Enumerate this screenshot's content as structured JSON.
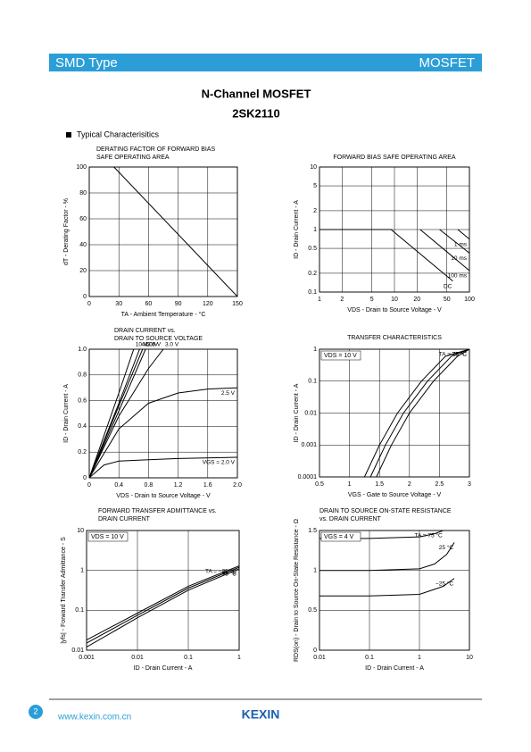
{
  "header": {
    "left": "SMD Type",
    "right": "MOSFET"
  },
  "title": "N-Channel MOSFET",
  "part": "2SK2110",
  "section": "Typical  Characterisitics",
  "charts": [
    {
      "type": "line",
      "title": [
        "DERATING FACTOR OF FORWARD BIAS",
        "SAFE OPERATING AREA"
      ],
      "xlabel": "TA - Ambient Temperature - °C",
      "ylabel": "dT - Derating Factor - %",
      "xlim": [
        0,
        150
      ],
      "xticks": [
        0,
        30,
        60,
        90,
        120,
        150
      ],
      "ylim": [
        0,
        100
      ],
      "yticks": [
        0,
        20,
        40,
        60,
        80,
        100
      ],
      "xlog": false,
      "ylog": false,
      "series": [
        {
          "x": [
            0,
            25,
            150
          ],
          "values": [
            100,
            100,
            0
          ]
        }
      ]
    },
    {
      "type": "line",
      "title": [
        "FORWARD BIAS SAFE OPERATING AREA"
      ],
      "xlabel": "VDS - Drain to Source Voltage - V",
      "ylabel": "ID - Drain Current - A",
      "xlim": [
        1,
        100
      ],
      "xticks": [
        1,
        2,
        5,
        10,
        20,
        50,
        100
      ],
      "ylim": [
        0.1,
        10
      ],
      "yticks": [
        0.1,
        0.2,
        0.5,
        1,
        2,
        5,
        10
      ],
      "xlog": true,
      "ylog": true,
      "series": [
        {
          "name": "DC",
          "x": [
            1,
            9,
            60
          ],
          "values": [
            1,
            1,
            0.15
          ]
        },
        {
          "name": "100 ms",
          "x": [
            22,
            100
          ],
          "values": [
            1,
            0.22
          ]
        },
        {
          "name": "10 ms",
          "x": [
            40,
            100
          ],
          "values": [
            1,
            0.42
          ]
        },
        {
          "name": "1 ms",
          "x": [
            70,
            100
          ],
          "values": [
            1,
            0.7
          ]
        }
      ]
    },
    {
      "type": "line",
      "title": [
        "DRAIN CURRENT vs.",
        "DRAIN TO SOURCE VOLTAGE"
      ],
      "xlabel": "VDS - Drain to Source Voltage - V",
      "ylabel": "ID - Drain Current - A",
      "xlim": [
        0,
        2
      ],
      "xticks": [
        0,
        0.4,
        0.8,
        1.2,
        1.6,
        {
          "value": 2,
          "label": "2.0"
        }
      ],
      "ylim": [
        0,
        1
      ],
      "yticks": [
        0,
        0.2,
        0.4,
        0.6,
        0.8,
        {
          "value": 1,
          "label": "1.0"
        }
      ],
      "xlog": false,
      "ylog": false,
      "series": [
        {
          "name": "VGS = 2.0 V",
          "x": [
            0,
            0.2,
            0.4,
            0.8,
            1.2,
            2
          ],
          "values": [
            0,
            0.1,
            0.13,
            0.14,
            0.15,
            0.16
          ]
        },
        {
          "name": "2.5 V",
          "x": [
            0,
            0.4,
            0.8,
            1.2,
            1.6,
            2
          ],
          "values": [
            0,
            0.38,
            0.58,
            0.66,
            0.69,
            0.7
          ]
        },
        {
          "name": "3.0 V",
          "x": [
            0,
            0.4,
            0.8,
            1.0
          ],
          "values": [
            0,
            0.48,
            0.85,
            1
          ]
        },
        {
          "name": "3.5 V",
          "x": [
            0,
            0.4,
            0.76
          ],
          "values": [
            0,
            0.52,
            1
          ]
        },
        {
          "name": "4.0 V",
          "x": [
            0,
            0.4,
            0.72
          ],
          "values": [
            0,
            0.56,
            1
          ]
        },
        {
          "name": "4.5 V",
          "x": [
            0,
            0.4,
            0.68
          ],
          "values": [
            0,
            0.58,
            1
          ]
        },
        {
          "name": "10 V",
          "x": [
            0,
            0.4,
            0.6
          ],
          "values": [
            0,
            0.66,
            1
          ]
        }
      ]
    },
    {
      "type": "line",
      "title": [
        "TRANSFER CHARACTERISTICS"
      ],
      "note": "VDS = 10 V",
      "xlabel": "VGS - Gate to Source Voltage - V",
      "ylabel": "ID - Drain Current - A",
      "xlim": [
        0.5,
        3
      ],
      "xticks": [
        0.5,
        1,
        1.5,
        2,
        2.5,
        3
      ],
      "ylim": [
        0.0001,
        1
      ],
      "yticks": [
        0.0001,
        0.001,
        0.01,
        0.1,
        1
      ],
      "xlog": false,
      "ylog": true,
      "series": [
        {
          "name": "TA = 75 °C",
          "x": [
            1.25,
            1.5,
            1.8,
            2.2,
            2.6,
            3
          ],
          "values": [
            0.0001,
            0.001,
            0.01,
            0.1,
            0.6,
            1
          ]
        },
        {
          "name": "25 °C",
          "x": [
            1.35,
            1.6,
            1.9,
            2.3,
            2.7,
            3
          ],
          "values": [
            0.0001,
            0.001,
            0.01,
            0.1,
            0.6,
            1
          ]
        },
        {
          "name": "−25 °C",
          "x": [
            1.45,
            1.7,
            2.0,
            2.4,
            2.8,
            3
          ],
          "values": [
            0.0001,
            0.001,
            0.01,
            0.1,
            0.6,
            1
          ]
        }
      ]
    },
    {
      "type": "line",
      "title": [
        "FORWARD TRANSFER ADMITTANCE vs.",
        "DRAIN CURRENT"
      ],
      "note": "VDS = 10 V",
      "xlabel": "ID - Drain Current - A",
      "ylabel": "|yfs| - Forward Transfer Admittance - S",
      "xlim": [
        0.001,
        1
      ],
      "xticks": [
        0.001,
        0.01,
        0.1,
        1
      ],
      "ylim": [
        0.01,
        10
      ],
      "yticks": [
        0.01,
        0.1,
        1,
        10
      ],
      "xlog": true,
      "ylog": true,
      "series": [
        {
          "name": "TA = −25 °C",
          "x": [
            0.001,
            0.01,
            0.1,
            1
          ],
          "values": [
            0.018,
            0.085,
            0.4,
            1.3
          ]
        },
        {
          "name": "25 °C",
          "x": [
            0.001,
            0.01,
            0.1,
            1
          ],
          "values": [
            0.015,
            0.075,
            0.36,
            1.2
          ]
        },
        {
          "name": "75 °C",
          "x": [
            0.001,
            0.01,
            0.1,
            1
          ],
          "values": [
            0.012,
            0.065,
            0.32,
            1.1
          ]
        }
      ]
    },
    {
      "type": "line",
      "title": [
        "DRAIN TO SOURCE ON-STATE RESISTANCE",
        "vs. DRAIN CURRENT"
      ],
      "note": "VGS = 4 V",
      "xlabel": "ID - Drain Current - A",
      "ylabel": "RDS(on) - Drain to Source On-State Resistance - Ω",
      "xlim": [
        0.01,
        10
      ],
      "xticks": [
        0.01,
        0.1,
        1,
        10
      ],
      "ylim": [
        0,
        1.5
      ],
      "yticks": [
        0,
        0.5,
        1,
        1.5
      ],
      "xlog": true,
      "ylog": false,
      "series": [
        {
          "name": "TA = 75 °C",
          "x": [
            0.01,
            0.1,
            1,
            2,
            3
          ],
          "values": [
            1.4,
            1.4,
            1.42,
            1.46,
            1.5
          ]
        },
        {
          "name": "25 °C",
          "x": [
            0.01,
            0.1,
            1,
            2,
            3.5,
            5
          ],
          "values": [
            1.0,
            1.0,
            1.02,
            1.08,
            1.2,
            1.35
          ]
        },
        {
          "name": "−25 °C",
          "x": [
            0.01,
            0.1,
            1,
            3,
            5
          ],
          "values": [
            0.68,
            0.68,
            0.7,
            0.8,
            0.9
          ]
        }
      ]
    }
  ],
  "footer": {
    "page": "2",
    "url": "www.kexin.com.cn",
    "brand": "KEXIN"
  }
}
